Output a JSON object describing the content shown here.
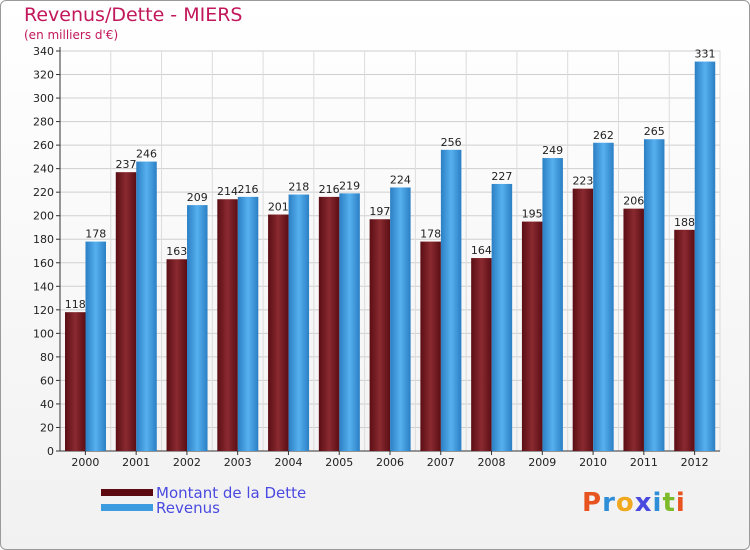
{
  "chart_data": {
    "type": "bar",
    "title": "Revenus/Dette - MIERS",
    "subtitle": "(en milliers d'€)",
    "categories": [
      "2000",
      "2001",
      "2002",
      "2003",
      "2004",
      "2005",
      "2006",
      "2007",
      "2008",
      "2009",
      "2010",
      "2011",
      "2012"
    ],
    "series": [
      {
        "name": "Montant de la Dette",
        "color": "#7a1a22",
        "values": [
          118,
          237,
          163,
          214,
          201,
          216,
          197,
          178,
          164,
          195,
          223,
          206,
          188
        ]
      },
      {
        "name": "Revenus",
        "color": "#3d9be0",
        "values": [
          178,
          246,
          209,
          216,
          218,
          219,
          224,
          256,
          227,
          249,
          262,
          265,
          331
        ]
      }
    ],
    "ylim": [
      0,
      340
    ],
    "ytick_step": 20,
    "grid": true,
    "legend_position": "bottom-left"
  },
  "legend": {
    "debt_label": "Montant de la Dette",
    "revenue_label": "Revenus"
  },
  "brand": {
    "logo_letters": [
      "P",
      "r",
      "o",
      "x",
      "i",
      "t",
      "i"
    ],
    "logo_colors": [
      "#e8541f",
      "#2f8ed8",
      "#f0a81e",
      "#4a4ae0",
      "#2f8ed8",
      "#7dbb2a",
      "#e8541f"
    ]
  }
}
